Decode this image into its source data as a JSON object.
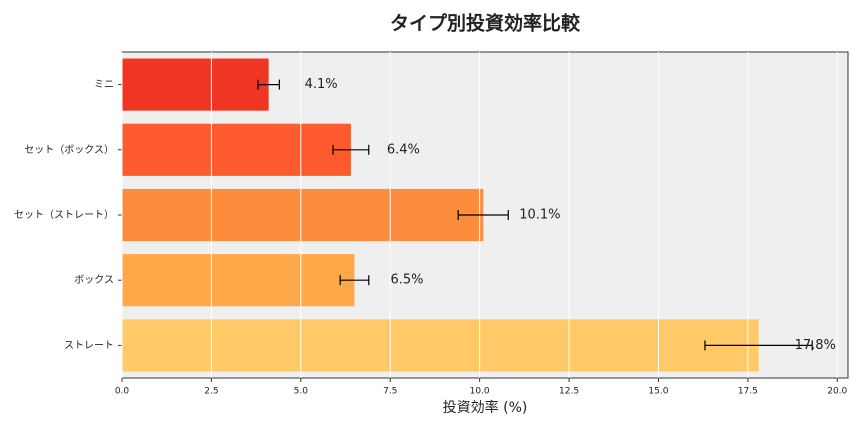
{
  "chart_data": {
    "type": "barh",
    "title": "タイプ別投資効率比較",
    "xlabel": "投資効率 (%)",
    "categories": [
      "ミニ",
      "セット（ボックス）",
      "セット（ストレート）",
      "ボックス",
      "ストレート"
    ],
    "values": [
      4.1,
      6.4,
      10.1,
      6.5,
      17.8
    ],
    "errors": [
      0.3,
      0.5,
      0.7,
      0.4,
      1.5
    ],
    "value_labels": [
      "4.1%",
      "6.4%",
      "10.1%",
      "6.5%",
      "17.8%"
    ],
    "colors": [
      "#f03523",
      "#fd5a2e",
      "#fd8d3c",
      "#fea84a",
      "#fec966"
    ],
    "xlim": [
      0,
      20.3
    ],
    "xticks": [
      {
        "value": 0,
        "label": "0.0"
      },
      {
        "value": 2.5,
        "label": "2.5"
      },
      {
        "value": 5,
        "label": "5.0"
      },
      {
        "value": 7.5,
        "label": "7.5"
      },
      {
        "value": 10,
        "label": "10.0"
      },
      {
        "value": 12.5,
        "label": "12.5"
      },
      {
        "value": 15,
        "label": "15.0"
      },
      {
        "value": 17.5,
        "label": "17.5"
      },
      {
        "value": 20,
        "label": "20.0"
      }
    ],
    "grid": true
  }
}
